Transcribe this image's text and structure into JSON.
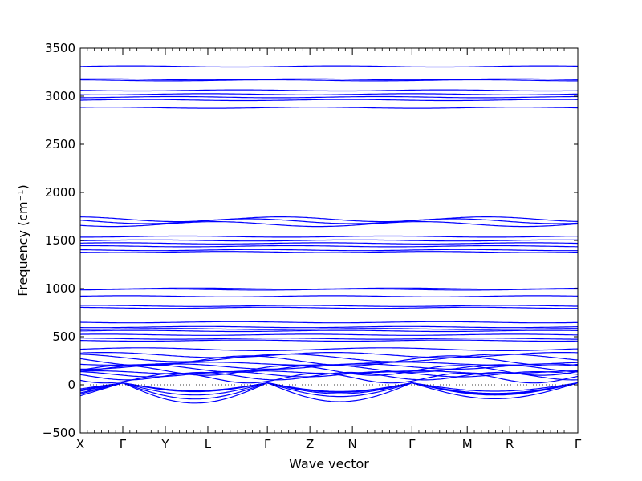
{
  "chart_data": {
    "type": "line",
    "title": "",
    "xlabel": "Wave vector",
    "ylabel": "Frequency (cm⁻¹)",
    "ylim": [
      -500,
      3500
    ],
    "yticks": [
      -500,
      0,
      500,
      1000,
      1500,
      2000,
      2500,
      3000,
      3500
    ],
    "ytick_labels": [
      "−500",
      "0",
      "500",
      "1000",
      "1500",
      "2000",
      "2500",
      "3000",
      "3500"
    ],
    "x_high_symmetry_labels": [
      "X",
      "Γ",
      "Y",
      "L",
      "Γ",
      "Z",
      "N",
      "Γ",
      "M",
      "R",
      "Γ"
    ],
    "x_high_symmetry_positions": [
      0,
      1,
      2,
      3,
      4.4,
      5.4,
      6.4,
      7.8,
      9.1,
      10.1,
      11.7
    ],
    "x_range": [
      0,
      11.7
    ],
    "zero_reference_line": true,
    "series_color": "#0000ff",
    "flat_bands": [
      3310,
      3175,
      3165,
      3060,
      3020,
      2990,
      2960,
      2880,
      1720,
      1700,
      1670,
      1540,
      1500,
      1470,
      1440,
      1400,
      1380,
      1000,
      990,
      920,
      820,
      800,
      650,
      600,
      580,
      560,
      520,
      480,
      460
    ],
    "dispersive_bands": {
      "low_optical_base": [
        370,
        310,
        280,
        250,
        220,
        190,
        170,
        150,
        130,
        110,
        90,
        70
      ],
      "acoustic_min_depths": [
        -190,
        -160,
        -140,
        -110,
        -90,
        -70
      ],
      "acoustic_gamma_positions": [
        1,
        4.4,
        7.8,
        11.7
      ]
    }
  }
}
